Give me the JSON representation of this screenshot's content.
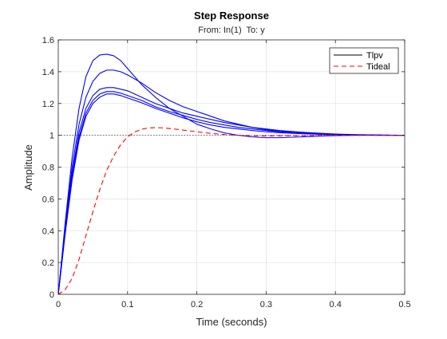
{
  "chart_data": {
    "type": "line",
    "title": "Step Response",
    "subtitle": "From: In(1)  To: y",
    "xlabel": "Time (seconds)",
    "ylabel": "Amplitude",
    "xlim": [
      0,
      0.5
    ],
    "ylim": [
      0,
      1.6
    ],
    "xticks": [
      0,
      0.1,
      0.2,
      0.3,
      0.4,
      0.5
    ],
    "xtick_labels": [
      "0",
      "0.1",
      "0.2",
      "0.3",
      "0.4",
      "0.5"
    ],
    "yticks": [
      0,
      0.2,
      0.4,
      0.6,
      0.8,
      1,
      1.2,
      1.4,
      1.6
    ],
    "ytick_labels": [
      "0",
      "0.2",
      "0.4",
      "0.6",
      "0.8",
      "1",
      "1.2",
      "1.4",
      "1.6"
    ],
    "grid": true,
    "reference_line": {
      "y": 1,
      "style": "dotted"
    },
    "legend": {
      "placement": "top-right",
      "entries": [
        {
          "label": "Tlpv",
          "color": "#000000",
          "style": "solid"
        },
        {
          "label": "Tideal",
          "color": "#ff0000",
          "style": "dashed"
        }
      ]
    },
    "series": [
      {
        "color": "#0000ff",
        "style": "solid",
        "x": [
          0,
          0.01,
          0.02,
          0.03,
          0.04,
          0.05,
          0.06,
          0.07,
          0.075,
          0.08,
          0.09,
          0.1,
          0.12,
          0.14,
          0.16,
          0.18,
          0.2,
          0.22,
          0.24,
          0.26,
          0.28,
          0.3,
          0.32,
          0.35,
          0.38,
          0.4,
          0.43,
          0.46,
          0.5
        ],
        "y": [
          0,
          0.45,
          0.86,
          1.17,
          1.37,
          1.47,
          1.505,
          1.51,
          1.505,
          1.5,
          1.47,
          1.42,
          1.32,
          1.24,
          1.17,
          1.12,
          1.07,
          1.04,
          1.015,
          1.0,
          0.99,
          0.985,
          0.985,
          0.99,
          0.995,
          0.998,
          1.0,
          1.0,
          1.0
        ]
      },
      {
        "color": "#0000ff",
        "style": "solid",
        "x": [
          0,
          0.01,
          0.02,
          0.03,
          0.04,
          0.05,
          0.06,
          0.07,
          0.08,
          0.09,
          0.1,
          0.12,
          0.14,
          0.16,
          0.18,
          0.2,
          0.22,
          0.24,
          0.26,
          0.28,
          0.3,
          0.32,
          0.35,
          0.38,
          0.4,
          0.43,
          0.46,
          0.5
        ],
        "y": [
          0,
          0.42,
          0.8,
          1.07,
          1.24,
          1.34,
          1.39,
          1.41,
          1.41,
          1.4,
          1.38,
          1.33,
          1.27,
          1.22,
          1.18,
          1.15,
          1.12,
          1.09,
          1.07,
          1.05,
          1.035,
          1.025,
          1.015,
          1.01,
          1.005,
          1.002,
          1.0,
          1.0
        ]
      },
      {
        "color": "#0000ff",
        "style": "solid",
        "x": [
          0,
          0.01,
          0.02,
          0.03,
          0.04,
          0.05,
          0.06,
          0.07,
          0.08,
          0.09,
          0.1,
          0.12,
          0.14,
          0.16,
          0.18,
          0.2,
          0.22,
          0.24,
          0.26,
          0.28,
          0.3,
          0.32,
          0.35,
          0.38,
          0.4,
          0.43,
          0.46,
          0.5
        ],
        "y": [
          0,
          0.4,
          0.76,
          1.02,
          1.17,
          1.25,
          1.29,
          1.3,
          1.3,
          1.29,
          1.28,
          1.24,
          1.2,
          1.17,
          1.14,
          1.12,
          1.1,
          1.08,
          1.065,
          1.05,
          1.04,
          1.03,
          1.02,
          1.012,
          1.008,
          1.004,
          1.002,
          1.0
        ]
      },
      {
        "color": "#0000ff",
        "style": "solid",
        "x": [
          0,
          0.01,
          0.02,
          0.03,
          0.04,
          0.05,
          0.06,
          0.07,
          0.08,
          0.09,
          0.1,
          0.12,
          0.14,
          0.16,
          0.18,
          0.2,
          0.22,
          0.24,
          0.26,
          0.28,
          0.3,
          0.32,
          0.35,
          0.38,
          0.4,
          0.43,
          0.46,
          0.5
        ],
        "y": [
          0,
          0.39,
          0.74,
          0.99,
          1.14,
          1.22,
          1.26,
          1.275,
          1.275,
          1.265,
          1.25,
          1.22,
          1.18,
          1.15,
          1.125,
          1.1,
          1.08,
          1.065,
          1.05,
          1.04,
          1.03,
          1.022,
          1.015,
          1.01,
          1.006,
          1.003,
          1.001,
          1.0
        ]
      },
      {
        "color": "#0000ff",
        "style": "solid",
        "x": [
          0,
          0.01,
          0.02,
          0.03,
          0.04,
          0.05,
          0.06,
          0.07,
          0.08,
          0.09,
          0.1,
          0.12,
          0.14,
          0.16,
          0.18,
          0.2,
          0.22,
          0.24,
          0.26,
          0.28,
          0.3,
          0.32,
          0.35,
          0.38,
          0.4,
          0.43,
          0.46,
          0.5
        ],
        "y": [
          0,
          0.38,
          0.72,
          0.97,
          1.12,
          1.2,
          1.24,
          1.26,
          1.26,
          1.25,
          1.235,
          1.205,
          1.17,
          1.14,
          1.11,
          1.085,
          1.065,
          1.05,
          1.04,
          1.03,
          1.022,
          1.016,
          1.01,
          1.006,
          1.004,
          1.002,
          1.001,
          1.0
        ]
      },
      {
        "name": "Tideal",
        "color": "#ff0000",
        "style": "dashed",
        "x": [
          0,
          0.01,
          0.02,
          0.03,
          0.04,
          0.05,
          0.06,
          0.07,
          0.08,
          0.09,
          0.1,
          0.11,
          0.12,
          0.13,
          0.14,
          0.15,
          0.16,
          0.18,
          0.2,
          0.22,
          0.24,
          0.26,
          0.28,
          0.3,
          0.33,
          0.36,
          0.4,
          0.45,
          0.5
        ],
        "y": [
          0,
          0.03,
          0.1,
          0.22,
          0.37,
          0.52,
          0.66,
          0.78,
          0.87,
          0.94,
          0.99,
          1.02,
          1.038,
          1.046,
          1.048,
          1.047,
          1.043,
          1.033,
          1.022,
          1.012,
          1.005,
          1.0,
          0.997,
          0.996,
          0.997,
          0.998,
          0.999,
          1.0,
          1.0
        ]
      }
    ]
  }
}
